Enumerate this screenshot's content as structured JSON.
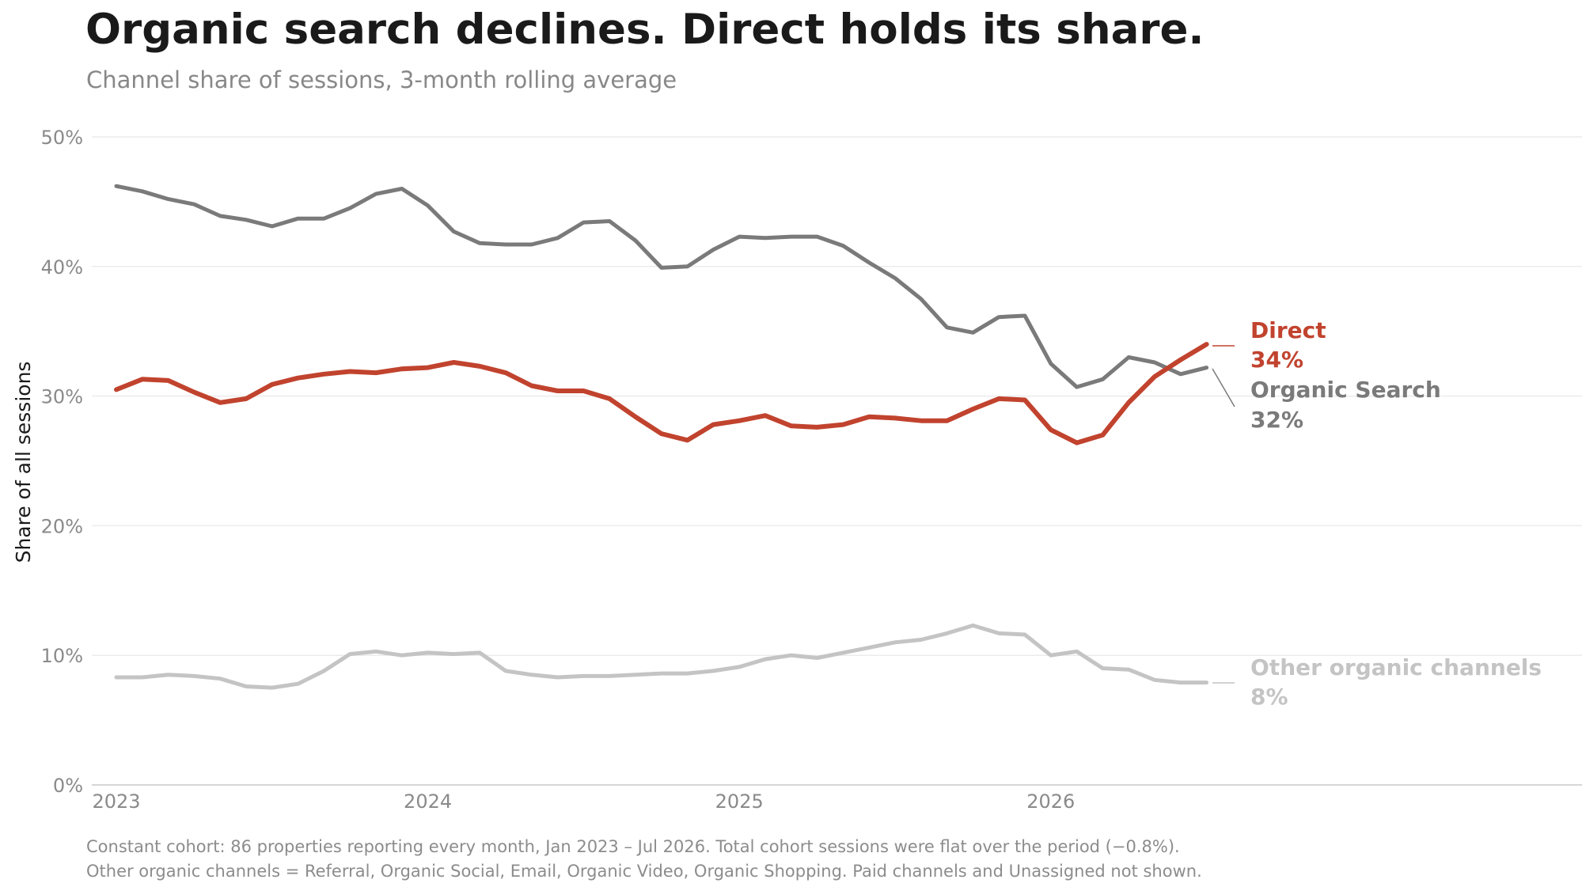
{
  "title": "Organic search declines. Direct holds its share.",
  "subtitle": "Channel share of sessions, 3-month rolling average",
  "footnotes": [
    "Constant cohort: 86 properties reporting every month, Jan 2023 – Jul 2026. Total cohort sessions were flat over the period (−0.8%).",
    "Other organic channels = Referral, Organic Social, Email, Organic Video, Organic Shopping. Paid channels and Unassigned not shown."
  ],
  "chart_data": {
    "type": "line",
    "title": "Organic search declines. Direct holds its share.",
    "subtitle": "Channel share of sessions, 3-month rolling average",
    "xlabel": "",
    "ylabel": "Share of all sessions",
    "x_tick_labels": [
      "2023",
      "2024",
      "2025",
      "2026"
    ],
    "y_tick_labels": [
      "0%",
      "10%",
      "20%",
      "30%",
      "40%",
      "50%"
    ],
    "ylim": [
      0,
      50
    ],
    "grid": "horizontal",
    "legend": "direct labels at line ends (right)",
    "x": [
      "2023-01",
      "2023-02",
      "2023-03",
      "2023-04",
      "2023-05",
      "2023-06",
      "2023-07",
      "2023-08",
      "2023-09",
      "2023-10",
      "2023-11",
      "2023-12",
      "2024-01",
      "2024-02",
      "2024-03",
      "2024-04",
      "2024-05",
      "2024-06",
      "2024-07",
      "2024-08",
      "2024-09",
      "2024-10",
      "2024-11",
      "2024-12",
      "2025-01",
      "2025-02",
      "2025-03",
      "2025-04",
      "2025-05",
      "2025-06",
      "2025-07",
      "2025-08",
      "2025-09",
      "2025-10",
      "2025-11",
      "2025-12",
      "2026-01",
      "2026-02",
      "2026-03",
      "2026-04",
      "2026-05",
      "2026-06",
      "2026-07"
    ],
    "series": [
      {
        "name": "Organic Search",
        "end_label": "32%",
        "color": "#7a7a7a",
        "values": [
          46.2,
          45.8,
          45.2,
          44.8,
          43.9,
          43.6,
          43.1,
          43.7,
          43.7,
          44.5,
          45.6,
          46.0,
          44.7,
          42.7,
          41.8,
          41.7,
          41.7,
          42.2,
          43.4,
          43.5,
          42.0,
          39.9,
          40.0,
          41.3,
          42.3,
          42.2,
          42.3,
          42.3,
          41.6,
          40.3,
          39.1,
          37.5,
          35.3,
          34.9,
          36.1,
          36.2,
          32.5,
          30.7,
          31.3,
          33.0,
          32.6,
          31.7,
          32.2
        ]
      },
      {
        "name": "Direct",
        "end_label": "34%",
        "color": "#c1432e",
        "values": [
          30.5,
          31.3,
          31.2,
          30.3,
          29.5,
          29.8,
          30.9,
          31.4,
          31.7,
          31.9,
          31.8,
          32.1,
          32.2,
          32.6,
          32.3,
          31.8,
          30.8,
          30.4,
          30.4,
          29.8,
          28.4,
          27.1,
          26.6,
          27.8,
          28.1,
          28.5,
          27.7,
          27.6,
          27.8,
          28.4,
          28.3,
          28.1,
          28.1,
          29.0,
          29.8,
          29.7,
          27.4,
          26.4,
          27.0,
          29.5,
          31.5,
          32.8,
          34.0
        ]
      },
      {
        "name": "Other organic channels",
        "end_label": "8%",
        "color": "#c4c4c4",
        "values": [
          8.3,
          8.3,
          8.5,
          8.4,
          8.2,
          7.6,
          7.5,
          7.8,
          8.8,
          10.1,
          10.3,
          10.0,
          10.2,
          10.1,
          10.2,
          8.8,
          8.5,
          8.3,
          8.4,
          8.4,
          8.5,
          8.6,
          8.6,
          8.8,
          9.1,
          9.7,
          10.0,
          9.8,
          10.2,
          10.6,
          11.0,
          11.2,
          11.7,
          12.3,
          11.7,
          11.6,
          10.0,
          10.3,
          9.0,
          8.9,
          8.1,
          7.9,
          7.9
        ]
      }
    ]
  }
}
